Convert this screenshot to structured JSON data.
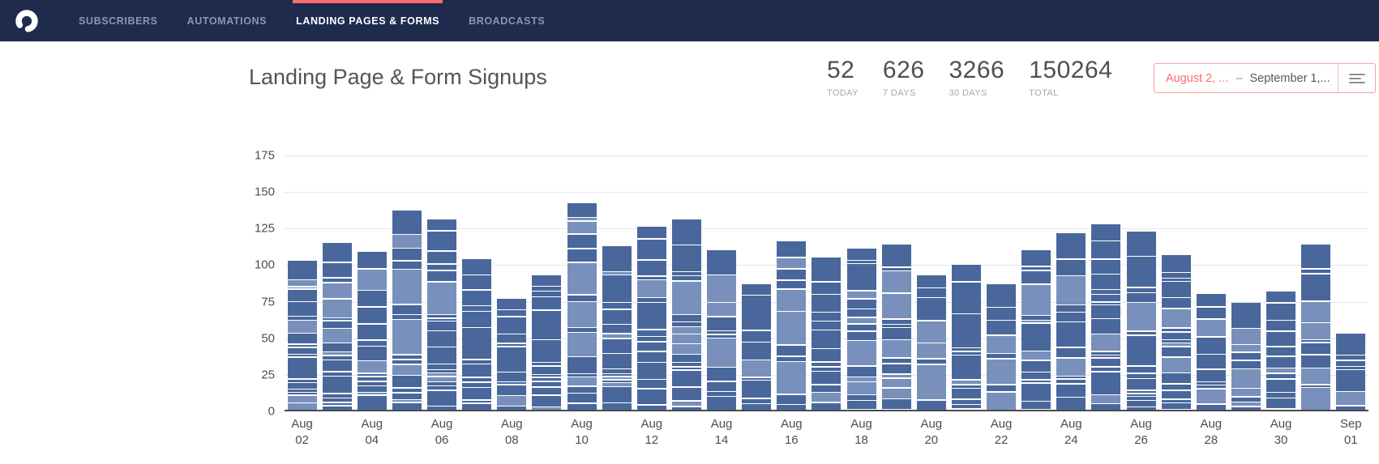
{
  "app": {
    "name": "ConvertKit dashboard"
  },
  "colors": {
    "navbar_bg": "#1f2b4c",
    "accent_red": "#fb6b70",
    "nav_inactive": "#8d96ac",
    "nav_active": "#ffffff",
    "text_dark": "#4b5056",
    "text_muted": "#a4a8ad",
    "gridline": "#e7e7e7",
    "bar_dark": "#49679b",
    "bar_light": "#7890bb"
  },
  "nav": {
    "logo_icon": "convertkit-logo-icon",
    "items": [
      {
        "label": "SUBSCRIBERS",
        "active": false
      },
      {
        "label": "AUTOMATIONS",
        "active": false
      },
      {
        "label": "LANDING PAGES & FORMS",
        "active": true
      },
      {
        "label": "BROADCASTS",
        "active": false
      }
    ]
  },
  "header": {
    "title": "Landing Page & Form Signups",
    "stats": [
      {
        "value": "52",
        "label": "TODAY"
      },
      {
        "value": "626",
        "label": "7 DAYS"
      },
      {
        "value": "3266",
        "label": "30 DAYS"
      },
      {
        "value": "150264",
        "label": "TOTAL"
      }
    ],
    "date_picker": {
      "start": "August 2, ...",
      "separator": "–",
      "end": "September 1,...",
      "icon": "filter-lines-icon"
    }
  },
  "chart_data": {
    "type": "bar",
    "stacked": true,
    "title": "Landing Page & Form Signups",
    "categories": [
      "Aug 02",
      "Aug 03",
      "Aug 04",
      "Aug 05",
      "Aug 06",
      "Aug 07",
      "Aug 08",
      "Aug 09",
      "Aug 10",
      "Aug 11",
      "Aug 12",
      "Aug 13",
      "Aug 14",
      "Aug 15",
      "Aug 16",
      "Aug 17",
      "Aug 18",
      "Aug 19",
      "Aug 20",
      "Aug 21",
      "Aug 22",
      "Aug 23",
      "Aug 24",
      "Aug 25",
      "Aug 26",
      "Aug 27",
      "Aug 28",
      "Aug 29",
      "Aug 30",
      "Aug 31",
      "Sep 01"
    ],
    "values": [
      102,
      114,
      108,
      136,
      130,
      103,
      76,
      92,
      141,
      112,
      125,
      130,
      109,
      86,
      115,
      104,
      110,
      113,
      92,
      99,
      86,
      109,
      121,
      127,
      122,
      106,
      79,
      73,
      81,
      113,
      52
    ],
    "x_tick_labels": [
      "Aug 02",
      "Aug 04",
      "Aug 06",
      "Aug 08",
      "Aug 10",
      "Aug 12",
      "Aug 14",
      "Aug 16",
      "Aug 18",
      "Aug 20",
      "Aug 22",
      "Aug 24",
      "Aug 26",
      "Aug 28",
      "Aug 30",
      "Sep 01"
    ],
    "xlabel": "",
    "ylabel": "",
    "ylim": [
      0,
      175
    ],
    "y_ticks": [
      0,
      25,
      50,
      75,
      100,
      125,
      150,
      175
    ],
    "grid": true,
    "legend": "none",
    "bar_segment_colors": {
      "dark": "#49679b",
      "light": "#7890bb"
    },
    "note": "Each daily bar is a stack of many thin unlabeled per-form segments separated by white lines; only the daily totals are legible. Totals cross-check: Sep 01 = TODAY (52), last 7 bars = 626, all bars = 3266."
  }
}
